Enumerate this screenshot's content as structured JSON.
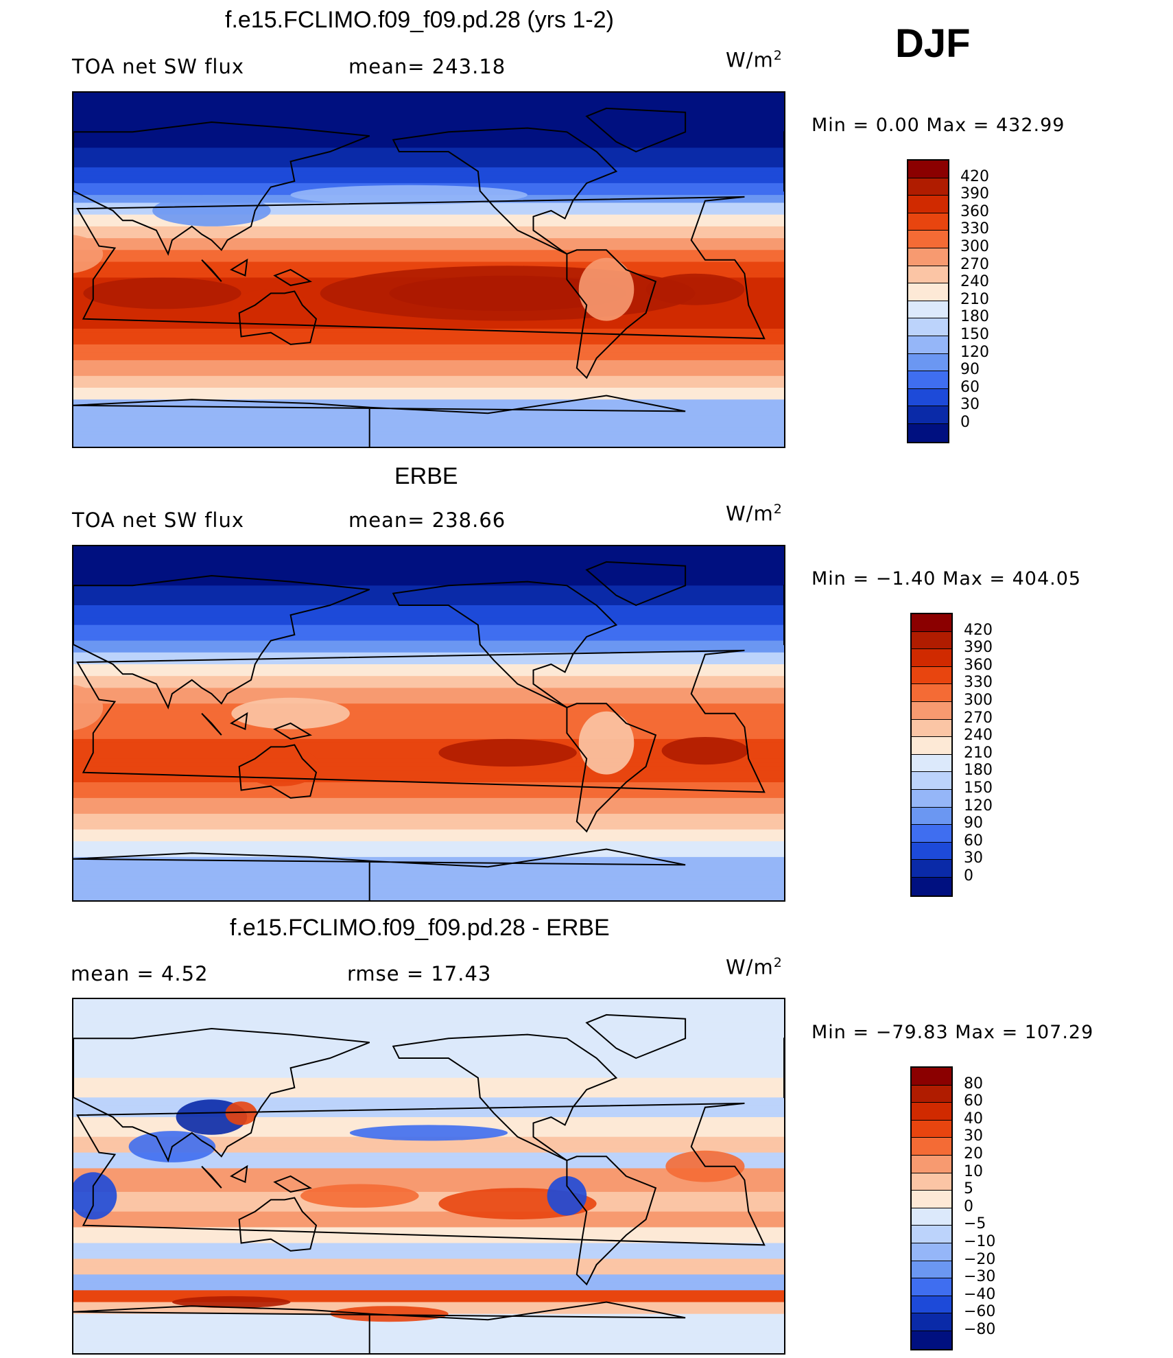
{
  "season": "DJF",
  "chart_data": [
    {
      "type": "heatmap",
      "title": "f.e15.FCLIMO.f09_f09.pd.28 (yrs 1-2)",
      "left_label": "TOA net SW flux",
      "center_label": "mean= 243.18",
      "units_base": "W/m",
      "units_exp": "2",
      "minmax": "Min =    0.00  Max  =  432.99",
      "colorbar_levels": [
        "420",
        "390",
        "360",
        "330",
        "300",
        "270",
        "240",
        "210",
        "180",
        "150",
        "120",
        "90",
        "60",
        "30",
        "0"
      ],
      "colorbar_colors": [
        "#8b0000",
        "#b01c00",
        "#d02a00",
        "#e8450f",
        "#f46b35",
        "#f79a70",
        "#fbc5a5",
        "#fde9d6",
        "#dce9fb",
        "#bcd3fb",
        "#95b6f8",
        "#6b97f2",
        "#3f6ef0",
        "#1d4ad9",
        "#0a2aa8",
        "#001080"
      ],
      "field": "model"
    },
    {
      "type": "heatmap",
      "title": "ERBE",
      "left_label": "TOA net SW flux",
      "center_label": "mean= 238.66",
      "units_base": "W/m",
      "units_exp": "2",
      "minmax": "Min  =   −1.40  Max  =  404.05",
      "colorbar_levels": [
        "420",
        "390",
        "360",
        "330",
        "300",
        "270",
        "240",
        "210",
        "180",
        "150",
        "120",
        "90",
        "60",
        "30",
        "0"
      ],
      "colorbar_colors": [
        "#8b0000",
        "#b01c00",
        "#d02a00",
        "#e8450f",
        "#f46b35",
        "#f79a70",
        "#fbc5a5",
        "#fde9d6",
        "#dce9fb",
        "#bcd3fb",
        "#95b6f8",
        "#6b97f2",
        "#3f6ef0",
        "#1d4ad9",
        "#0a2aa8",
        "#001080"
      ],
      "field": "obs"
    },
    {
      "type": "heatmap",
      "title": "f.e15.FCLIMO.f09_f09.pd.28 - ERBE",
      "left_label": "mean =     4.52",
      "center_label": "rmse  =    17.43",
      "units_base": "W/m",
      "units_exp": "2",
      "minmax": "Min  = −79.83  Max  =  107.29",
      "colorbar_levels": [
        "80",
        "60",
        "40",
        "30",
        "20",
        "10",
        "5",
        "0",
        "−5",
        "−10",
        "−20",
        "−30",
        "−40",
        "−60",
        "−80"
      ],
      "colorbar_colors": [
        "#8b0000",
        "#b01c00",
        "#d02a00",
        "#e8450f",
        "#f46b35",
        "#f79a70",
        "#fbc5a5",
        "#fde9d6",
        "#dce9fb",
        "#bcd3fb",
        "#95b6f8",
        "#6b97f2",
        "#3f6ef0",
        "#1d4ad9",
        "#0a2aa8",
        "#001080"
      ],
      "field": "diff"
    }
  ]
}
